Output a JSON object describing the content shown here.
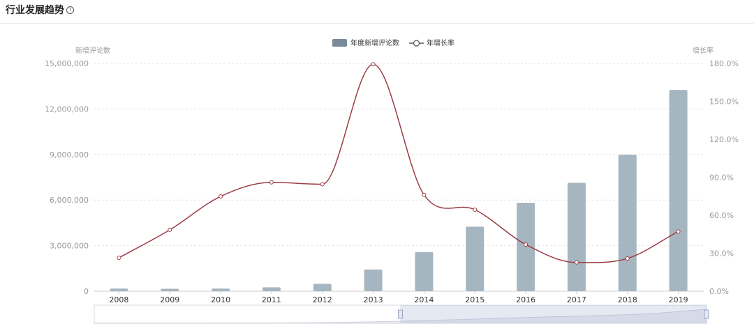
{
  "header": {
    "title": "行业发展趋势",
    "help_icon": "question-circle-icon"
  },
  "chart_data": {
    "type": "bar",
    "title": "",
    "categories": [
      "2008",
      "2009",
      "2010",
      "2011",
      "2012",
      "2013",
      "2014",
      "2015",
      "2016",
      "2017",
      "2018",
      "2019"
    ],
    "series": [
      {
        "name": "年度新增评论数",
        "type": "bar",
        "axis": "left",
        "color": "#a6b6c1",
        "values": [
          170000,
          160000,
          170000,
          260000,
          490000,
          1430000,
          2580000,
          4250000,
          5820000,
          7140000,
          8990000,
          13250000
        ]
      },
      {
        "name": "年增长率",
        "type": "line",
        "smooth": true,
        "axis": "right",
        "color": "#9c3c44",
        "values": [
          26.4,
          48.5,
          74.9,
          86.0,
          84.5,
          179.3,
          76.1,
          64.4,
          36.9,
          22.7,
          25.9,
          47.2
        ]
      }
    ],
    "y_left": {
      "label": "新增评论数",
      "min": 0,
      "max": 15000000,
      "ticks": [
        0,
        3000000,
        6000000,
        9000000,
        12000000,
        15000000
      ],
      "tick_labels": [
        "0",
        "3,000,000",
        "6,000,000",
        "9,000,000",
        "12,000,000",
        "15,000,000"
      ]
    },
    "y_right": {
      "label": "增长率",
      "min": 0,
      "max": 180,
      "ticks": [
        0,
        30,
        60,
        90,
        120,
        150,
        180
      ],
      "tick_labels": [
        "0.0%",
        "30.0%",
        "60.0%",
        "90.0%",
        "120.0%",
        "150.0%",
        "180.0%"
      ]
    },
    "grid": true,
    "legend_position": "top-center",
    "legend_swatch_color": "#7a8a99",
    "data_zoom": {
      "start_fraction": 0.5,
      "end_fraction": 1.0
    }
  }
}
